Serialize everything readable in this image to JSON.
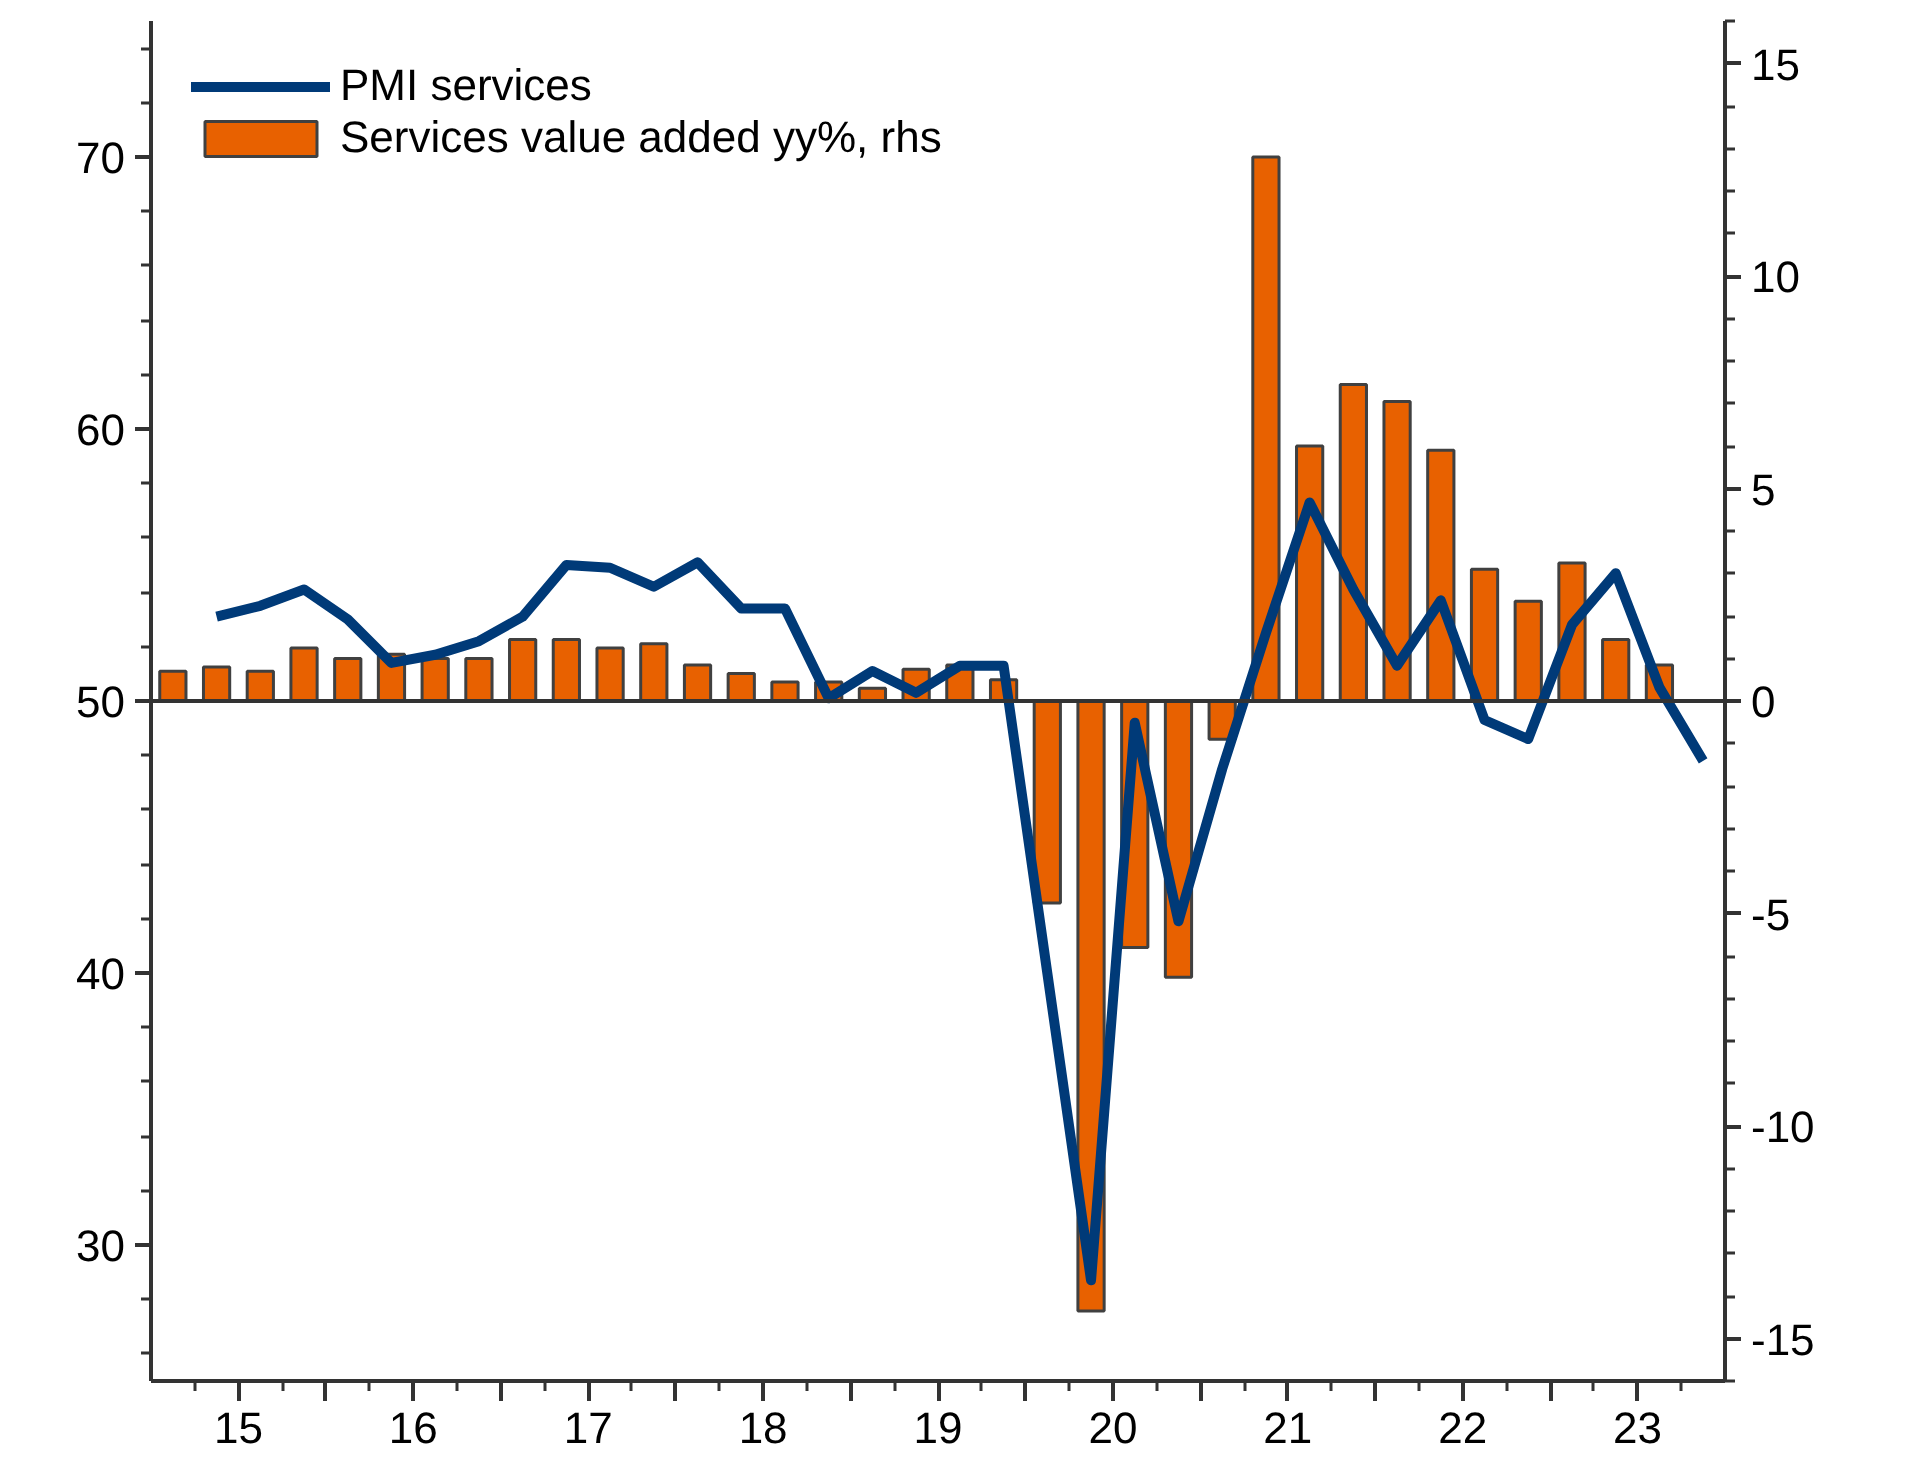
{
  "chart_data": {
    "type": "bar",
    "x": [
      14.625,
      14.875,
      15.125,
      15.375,
      15.625,
      15.875,
      16.125,
      16.375,
      16.625,
      16.875,
      17.125,
      17.375,
      17.625,
      17.875,
      18.125,
      18.375,
      18.625,
      18.875,
      19.125,
      19.375,
      19.625,
      19.875,
      20.125,
      20.375,
      20.625,
      20.875,
      21.125,
      21.375,
      21.625,
      21.875,
      22.125,
      22.375,
      22.625,
      22.875,
      23.125,
      23.375
    ],
    "series": [
      {
        "name": "PMI services",
        "type": "line",
        "color": "#003a78",
        "values": [
          null,
          53.1,
          53.5,
          54.1,
          53.0,
          51.4,
          51.7,
          52.2,
          53.1,
          55.0,
          54.9,
          54.2,
          55.1,
          53.4,
          53.4,
          50.1,
          51.1,
          50.3,
          51.3,
          51.3,
          40.0,
          28.7,
          49.2,
          41.9,
          47.5,
          52.5,
          57.3,
          54.1,
          51.3,
          53.7,
          49.3,
          48.6,
          52.8,
          54.7,
          50.5,
          47.8
        ]
      },
      {
        "name": "Services value added yy%, rhs",
        "axis": "y2",
        "color": "#e86100",
        "values": [
          0.7,
          0.8,
          0.7,
          1.25,
          1.0,
          1.1,
          1.0,
          1.0,
          1.45,
          1.45,
          1.25,
          1.35,
          0.85,
          0.65,
          0.45,
          0.45,
          0.3,
          0.75,
          0.85,
          0.5,
          -4.75,
          -14.35,
          -5.8,
          -6.5,
          -0.9,
          12.8,
          6.0,
          7.45,
          7.05,
          5.9,
          3.1,
          2.35,
          3.25,
          1.45,
          0.85,
          null
        ]
      }
    ],
    "xlim": [
      14.5,
      23.5
    ],
    "xticks": [
      15,
      {
        "value": 15.5,
        "label": null
      },
      16,
      {
        "value": 16.5,
        "label": null
      },
      17,
      {
        "value": 17.5,
        "label": null
      },
      18,
      {
        "value": 18.5,
        "label": null
      },
      19,
      {
        "value": 19.5,
        "label": null
      },
      20,
      {
        "value": 20.5,
        "label": null
      },
      21,
      {
        "value": 21.5,
        "label": null
      },
      22,
      {
        "value": 22.5,
        "label": null
      },
      23
    ],
    "ylim": [
      25,
      75
    ],
    "yticks": [
      30,
      40,
      50,
      60,
      70
    ],
    "y2lim": [
      -16,
      16
    ],
    "y2ticks": [
      -15,
      -10,
      -5,
      0,
      5,
      10,
      15
    ],
    "ref_lines": [
      {
        "axis": "y2",
        "value": 0
      }
    ],
    "legend": "top left",
    "grid": false
  }
}
